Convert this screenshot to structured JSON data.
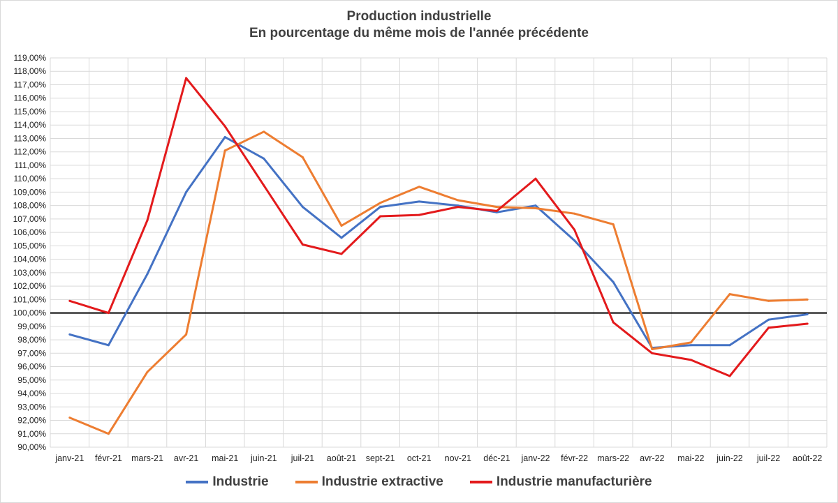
{
  "chart_data": {
    "type": "line",
    "title": "Production industrielle",
    "subtitle": "En pourcentage du même mois de l'année précédente",
    "xlabel": "",
    "ylabel": "",
    "ylim": [
      90,
      119
    ],
    "ystep": 1,
    "reference_line": 100,
    "grid": true,
    "legend_position": "bottom",
    "categories": [
      "janv-21",
      "févr-21",
      "mars-21",
      "avr-21",
      "mai-21",
      "juin-21",
      "juil-21",
      "août-21",
      "sept-21",
      "oct-21",
      "nov-21",
      "déc-21",
      "janv-22",
      "févr-22",
      "mars-22",
      "avr-22",
      "mai-22",
      "juin-22",
      "juil-22",
      "août-22"
    ],
    "y_tick_labels": [
      "90,00%",
      "91,00%",
      "92,00%",
      "93,00%",
      "94,00%",
      "95,00%",
      "96,00%",
      "97,00%",
      "98,00%",
      "99,00%",
      "100,00%",
      "101,00%",
      "102,00%",
      "103,00%",
      "104,00%",
      "105,00%",
      "106,00%",
      "107,00%",
      "108,00%",
      "109,00%",
      "110,00%",
      "111,00%",
      "112,00%",
      "113,00%",
      "114,00%",
      "115,00%",
      "116,00%",
      "117,00%",
      "118,00%",
      "119,00%"
    ],
    "series": [
      {
        "name": "Industrie",
        "color": "#4472c4",
        "values": [
          98.4,
          97.6,
          102.9,
          109.0,
          113.1,
          111.5,
          107.9,
          105.6,
          107.9,
          108.3,
          108.0,
          107.5,
          108.0,
          105.4,
          102.3,
          97.4,
          97.6,
          97.6,
          99.5,
          99.9
        ]
      },
      {
        "name": "Industrie extractive",
        "color": "#ed7d31",
        "values": [
          92.2,
          91.0,
          95.6,
          98.4,
          112.1,
          113.5,
          111.6,
          106.5,
          108.2,
          109.4,
          108.4,
          107.9,
          107.8,
          107.4,
          106.6,
          97.3,
          97.8,
          101.4,
          100.9,
          101.0
        ]
      },
      {
        "name": "Industrie manufacturière",
        "color": "#e31a1c",
        "values": [
          100.9,
          100.0,
          106.9,
          117.5,
          113.9,
          109.5,
          105.1,
          104.4,
          107.2,
          107.3,
          107.9,
          107.6,
          110.0,
          106.2,
          99.3,
          97.0,
          96.5,
          95.3,
          98.9,
          99.2
        ]
      }
    ]
  }
}
